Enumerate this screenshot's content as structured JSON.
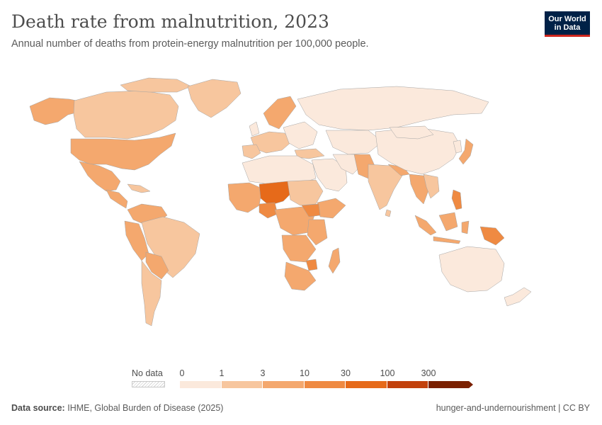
{
  "header": {
    "title": "Death rate from malnutrition, 2023",
    "subtitle": "Annual number of deaths from protein-energy malnutrition per 100,000 people."
  },
  "logo": {
    "line1": "Our World",
    "line2": "in Data"
  },
  "legend": {
    "no_data_label": "No data",
    "ticks": [
      "0",
      "1",
      "3",
      "10",
      "30",
      "100",
      "300"
    ],
    "colors": [
      "#fbe9dc",
      "#f7c69e",
      "#f4a86e",
      "#ef8a42",
      "#e66a1a",
      "#c2410c",
      "#7a2000"
    ]
  },
  "footer": {
    "source_label": "Data source:",
    "source_text": "IHME, Global Burden of Disease (2025)",
    "right_text": "hunger-and-undernourishment | CC BY"
  }
}
